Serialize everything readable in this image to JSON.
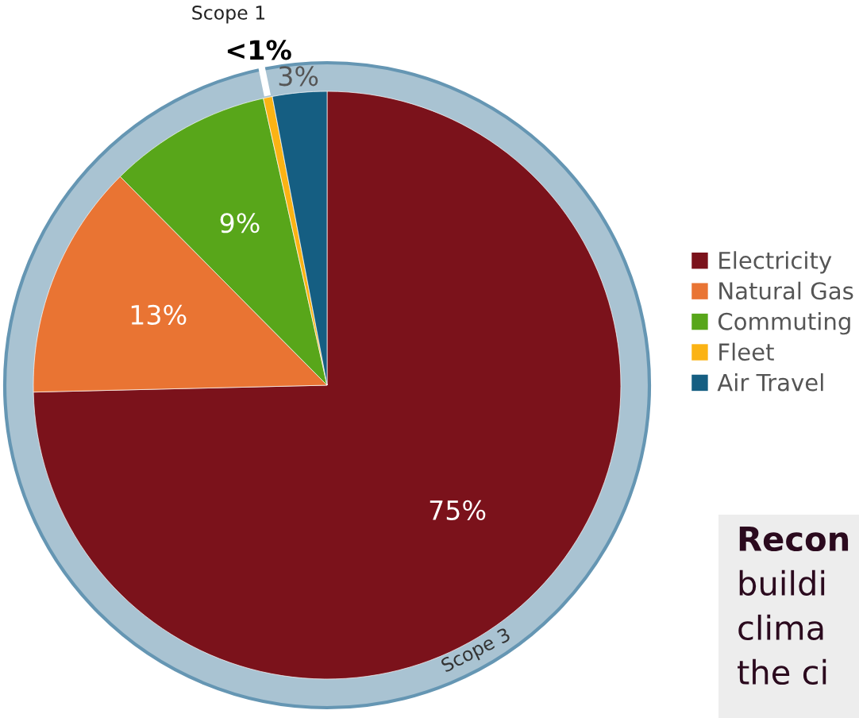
{
  "chart_data": {
    "type": "pie",
    "categories": [
      "Electricity",
      "Natural Gas",
      "Commuting",
      "Fleet",
      "Air Travel"
    ],
    "values": [
      75,
      13,
      9,
      0.5,
      3
    ],
    "colors": [
      "#7b121b",
      "#e97433",
      "#58a61a",
      "#fbb314",
      "#155e82"
    ],
    "value_labels": [
      "75%",
      "13%",
      "9%",
      "<1%",
      "3%"
    ],
    "legend": "right",
    "annotations": [
      "Scope 1",
      "Scope 3",
      "Recon",
      "buildi",
      "clima",
      "the ci"
    ]
  }
}
